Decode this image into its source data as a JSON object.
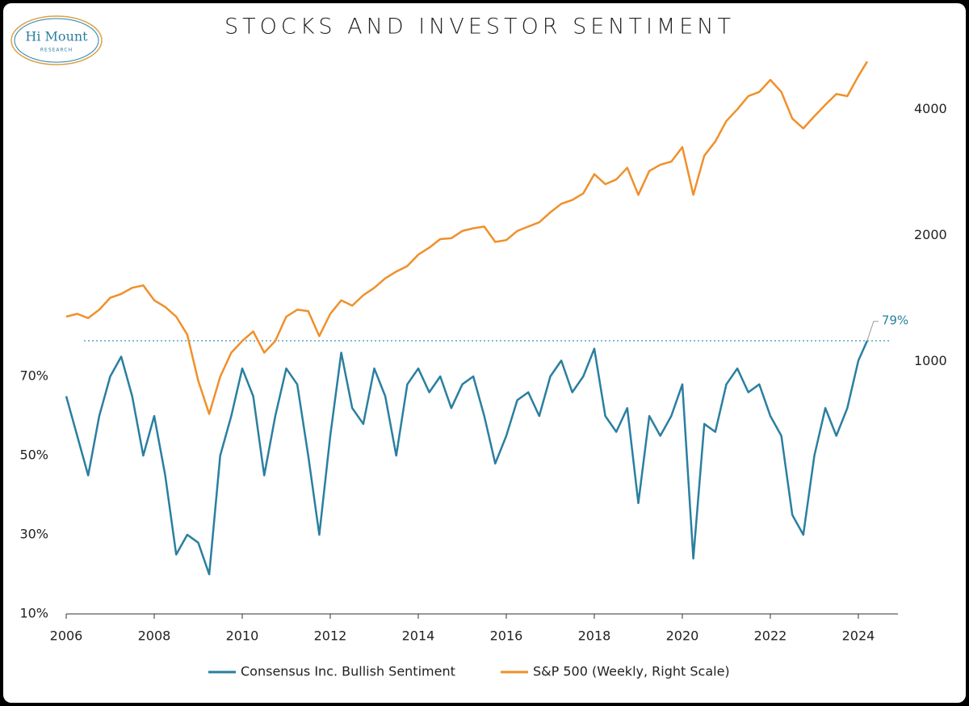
{
  "logo": {
    "name": "Hi Mount",
    "sub": "RESEARCH"
  },
  "chart_data": {
    "type": "line",
    "title": "STOCKS AND INVESTOR SENTIMENT",
    "x": [
      2006,
      2006.25,
      2006.5,
      2006.75,
      2007,
      2007.25,
      2007.5,
      2007.75,
      2008,
      2008.25,
      2008.5,
      2008.75,
      2009,
      2009.25,
      2009.5,
      2009.75,
      2010,
      2010.25,
      2010.5,
      2010.75,
      2011,
      2011.25,
      2011.5,
      2011.75,
      2012,
      2012.25,
      2012.5,
      2012.75,
      2013,
      2013.25,
      2013.5,
      2013.75,
      2014,
      2014.25,
      2014.5,
      2014.75,
      2015,
      2015.25,
      2015.5,
      2015.75,
      2016,
      2016.25,
      2016.5,
      2016.75,
      2017,
      2017.25,
      2017.5,
      2017.75,
      2018,
      2018.25,
      2018.5,
      2018.75,
      2019,
      2019.25,
      2019.5,
      2019.75,
      2020,
      2020.25,
      2020.5,
      2020.75,
      2021,
      2021.25,
      2021.5,
      2021.75,
      2022,
      2022.25,
      2022.5,
      2022.75,
      2023,
      2023.25,
      2023.5,
      2023.75,
      2024,
      2024.2
    ],
    "series": [
      {
        "name": "Consensus Inc. Bullish Sentiment",
        "color": "#2a7fa0",
        "values": [
          65,
          55,
          45,
          60,
          70,
          75,
          65,
          50,
          60,
          45,
          25,
          30,
          28,
          20,
          50,
          60,
          72,
          65,
          45,
          60,
          72,
          68,
          50,
          30,
          55,
          76,
          62,
          58,
          72,
          65,
          50,
          68,
          72,
          66,
          70,
          62,
          68,
          70,
          60,
          48,
          55,
          64,
          66,
          60,
          70,
          74,
          66,
          70,
          77,
          60,
          56,
          62,
          38,
          60,
          55,
          60,
          68,
          24,
          58,
          56,
          68,
          72,
          66,
          68,
          60,
          55,
          35,
          30,
          50,
          62,
          55,
          62,
          74,
          79
        ],
        "value_labels": [
          null,
          null,
          null,
          null,
          null,
          null,
          null,
          null,
          null,
          null,
          null,
          null,
          null,
          null,
          null,
          null,
          null,
          null,
          null,
          null,
          null,
          null,
          null,
          null,
          null,
          null,
          null,
          null,
          null,
          null,
          null,
          null,
          null,
          null,
          null,
          null,
          null,
          null,
          null,
          null,
          null,
          null,
          null,
          null,
          null,
          null,
          null,
          null,
          null,
          null,
          null,
          null,
          null,
          null,
          null,
          null,
          null,
          null,
          null,
          null,
          null,
          null,
          null,
          null,
          null,
          null,
          null,
          null,
          null,
          null,
          null,
          null,
          null,
          "79%"
        ]
      },
      {
        "name": "S&P 500 (Weekly, Right Scale)",
        "color": "#f0902a",
        "axis": "y2",
        "values": [
          1280,
          1300,
          1270,
          1330,
          1420,
          1450,
          1500,
          1520,
          1400,
          1350,
          1280,
          1160,
          900,
          750,
          920,
          1050,
          1120,
          1180,
          1050,
          1120,
          1280,
          1330,
          1320,
          1150,
          1300,
          1400,
          1360,
          1440,
          1500,
          1580,
          1640,
          1690,
          1800,
          1870,
          1960,
          1970,
          2050,
          2080,
          2100,
          1930,
          1950,
          2050,
          2100,
          2150,
          2270,
          2380,
          2430,
          2520,
          2800,
          2650,
          2720,
          2900,
          2500,
          2850,
          2950,
          3000,
          3250,
          2500,
          3100,
          3350,
          3750,
          4000,
          4300,
          4400,
          4700,
          4400,
          3800,
          3600,
          3850,
          4100,
          4350,
          4300,
          4800,
          5200
        ]
      }
    ],
    "reference_line": 79,
    "xlim": [
      2006,
      2024.9
    ],
    "xticks": [
      2006,
      2008,
      2010,
      2012,
      2014,
      2016,
      2018,
      2020,
      2022,
      2024
    ],
    "ylim": [
      10,
      150
    ],
    "yticks": [
      {
        "value": 10,
        "label": "10%"
      },
      {
        "value": 30,
        "label": "30%"
      },
      {
        "value": 50,
        "label": "50%"
      },
      {
        "value": 70,
        "label": "70%"
      }
    ],
    "y2lim": [
      250,
      5250
    ],
    "y2log": true,
    "y2ticks": [
      1000,
      2000,
      4000
    ],
    "legend": "bottom"
  }
}
